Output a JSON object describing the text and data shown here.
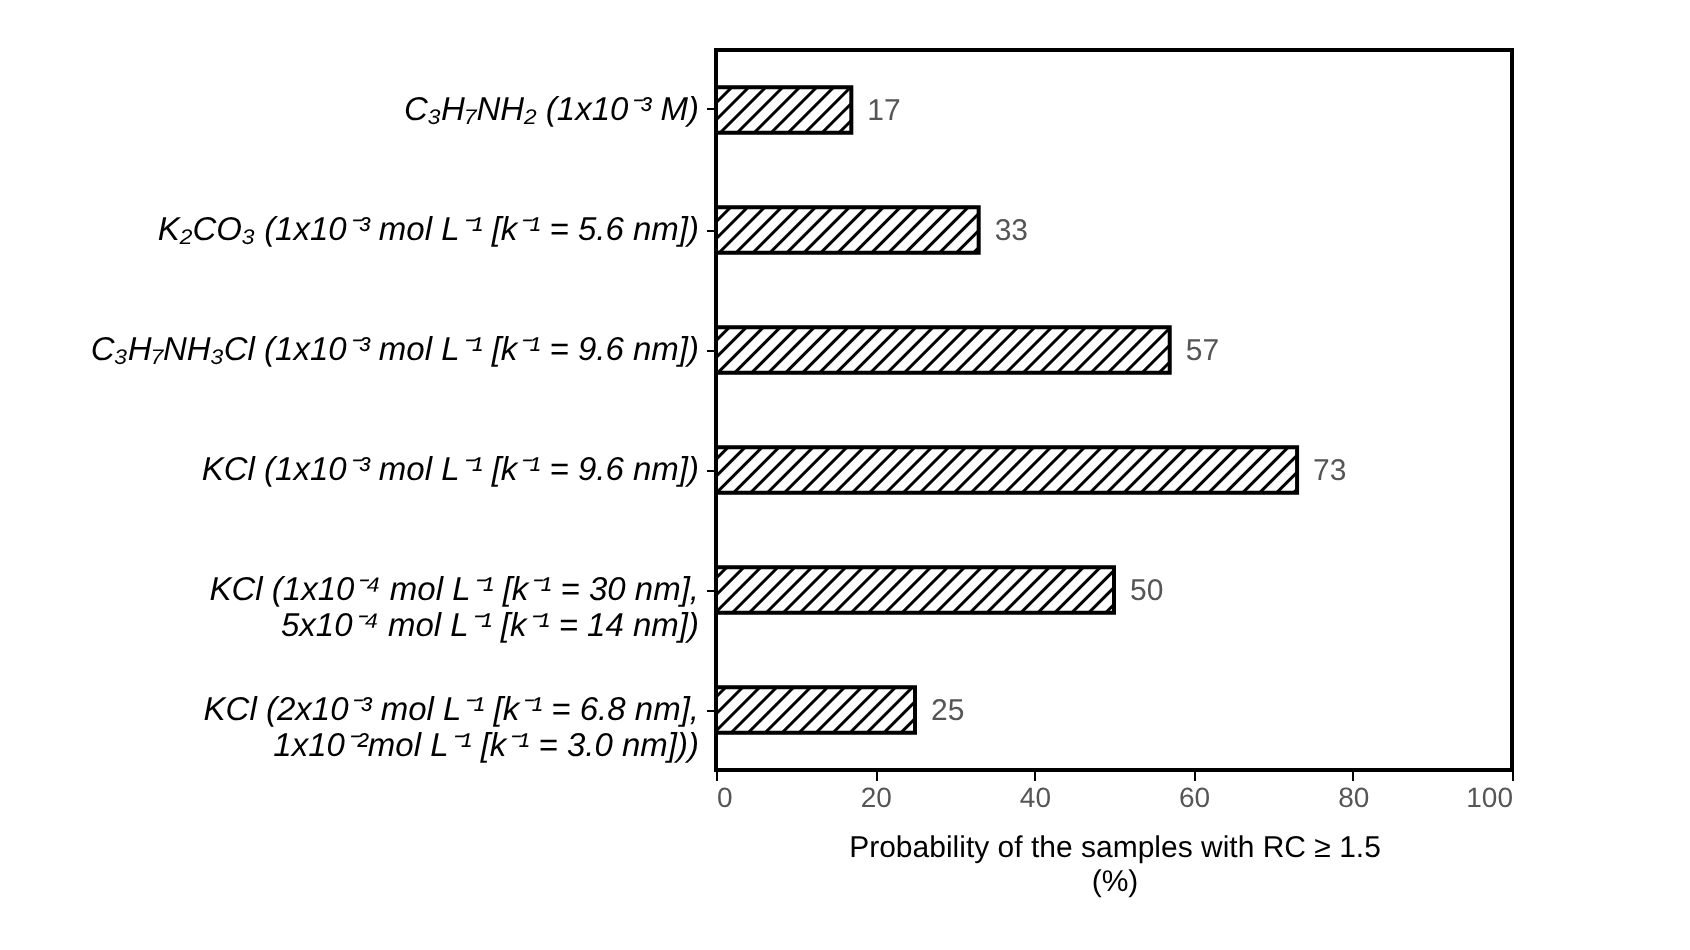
{
  "chart_data": {
    "type": "bar",
    "orientation": "horizontal",
    "categories": [
      "C₃H₇NH₂  (1x10⁻³ M)",
      "K₂CO₃  (1x10⁻³ mol L⁻¹ [k⁻¹ = 5.6 nm])",
      "C₃H₇NH₃Cl  (1x10⁻³ mol L⁻¹ [k⁻¹ = 9.6 nm])",
      "KCl (1x10⁻³ mol L⁻¹ [k⁻¹ = 9.6 nm])",
      "KCl (1x10⁻⁴ mol L⁻¹ [k⁻¹ = 30 nm],\n5x10⁻⁴ mol L⁻¹ [k⁻¹ = 14 nm])",
      "KCl (2x10⁻³ mol L⁻¹ [k⁻¹ = 6.8 nm],\n1x10⁻²mol L⁻¹ [k⁻¹ = 3.0 nm]))"
    ],
    "values": [
      17,
      33,
      57,
      73,
      50,
      25
    ],
    "color": "#000000",
    "xlabel": "Probability of the samples with RC ≥ 1.5\n(%)",
    "xlim": [
      0,
      100
    ],
    "xticks": [
      0,
      20,
      40,
      60,
      80,
      100
    ],
    "data_labels": true,
    "grid": false
  }
}
